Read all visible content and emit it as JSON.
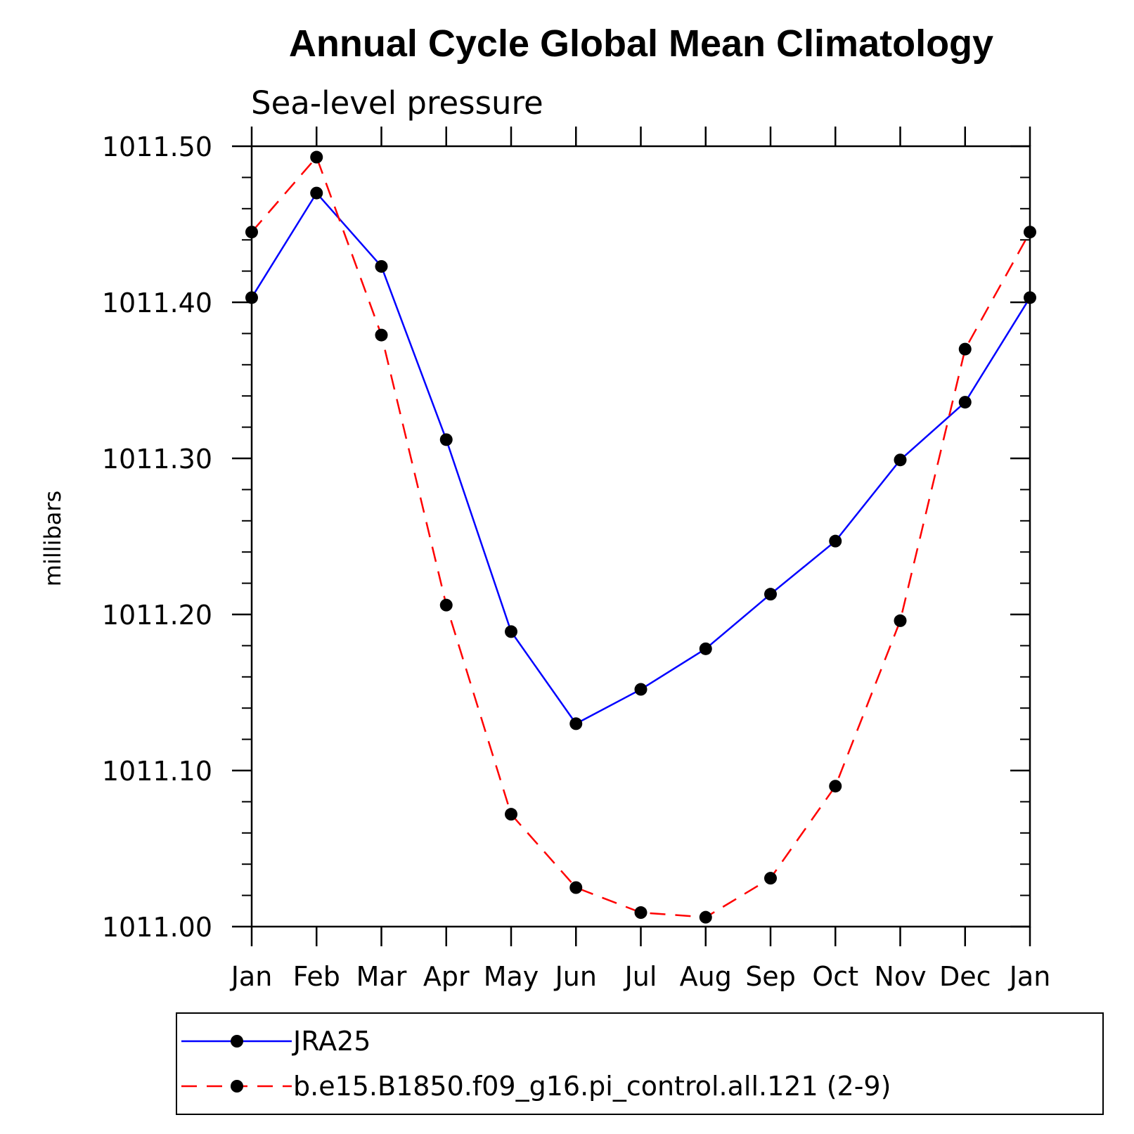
{
  "colors": {
    "series_1": "#0000ff",
    "series_2": "#ff0000",
    "marker": "#000000",
    "axis": "#000000"
  },
  "chart_data": {
    "type": "line",
    "title": "Annual Cycle Global Mean Climatology",
    "subtitle": "Sea-level pressure",
    "xlabel": "",
    "ylabel": "millibars",
    "categories": [
      "Jan",
      "Feb",
      "Mar",
      "Apr",
      "May",
      "Jun",
      "Jul",
      "Aug",
      "Sep",
      "Oct",
      "Nov",
      "Dec",
      "Jan"
    ],
    "yticks": [
      "1011.00",
      "1011.10",
      "1011.20",
      "1011.30",
      "1011.40",
      "1011.50"
    ],
    "ylim": [
      1011.0,
      1011.5
    ],
    "grid": false,
    "legend_position": "bottom",
    "series": [
      {
        "name": "JRA25",
        "line_style": "solid",
        "values": [
          1011.403,
          1011.47,
          1011.423,
          1011.312,
          1011.189,
          1011.13,
          1011.152,
          1011.178,
          1011.213,
          1011.247,
          1011.299,
          1011.336,
          1011.403
        ]
      },
      {
        "name": "b.e15.B1850.f09_g16.pi_control.all.121 (2-9)",
        "line_style": "dashed",
        "values": [
          1011.445,
          1011.493,
          1011.379,
          1011.206,
          1011.072,
          1011.025,
          1011.009,
          1011.006,
          1011.031,
          1011.09,
          1011.196,
          1011.37,
          1011.445
        ]
      }
    ]
  }
}
